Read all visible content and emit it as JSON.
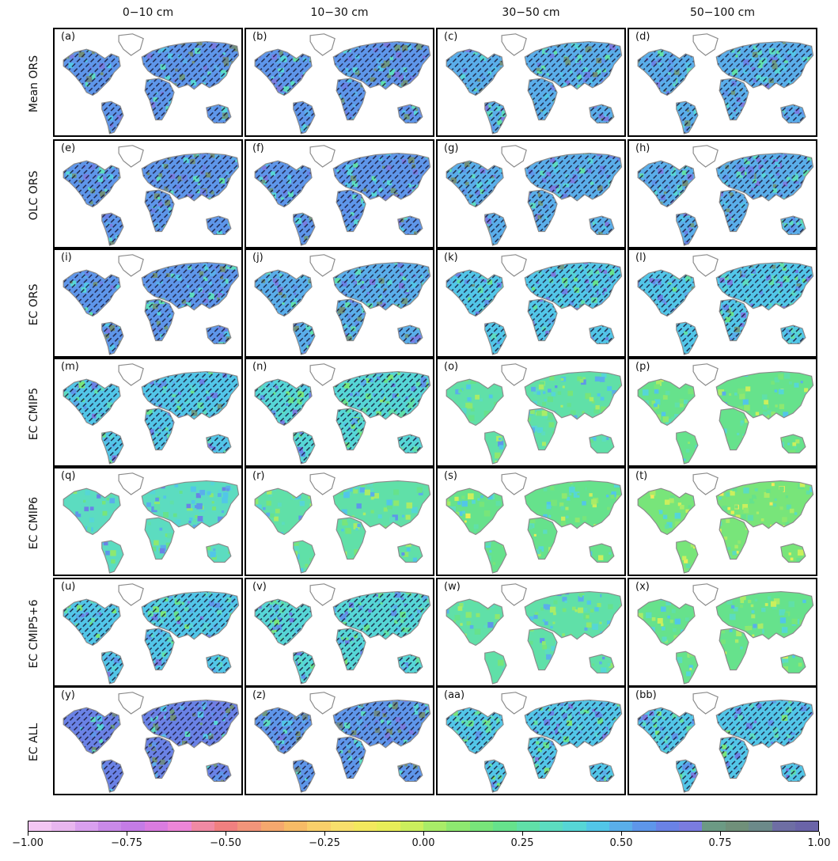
{
  "columns": [
    "0−10 cm",
    "10−30 cm",
    "30−50 cm",
    "50−100 cm"
  ],
  "rows": [
    {
      "label": "Mean ORS",
      "panels": [
        "(a)",
        "(b)",
        "(c)",
        "(d)"
      ],
      "mean_value": [
        0.58,
        0.55,
        0.52,
        0.5
      ]
    },
    {
      "label": "OLC ORS",
      "panels": [
        "(e)",
        "(f)",
        "(g)",
        "(h)"
      ],
      "mean_value": [
        0.56,
        0.54,
        0.52,
        0.5
      ]
    },
    {
      "label": "EC ORS",
      "panels": [
        "(i)",
        "(j)",
        "(k)",
        "(l)"
      ],
      "mean_value": [
        0.55,
        0.52,
        0.46,
        0.46
      ]
    },
    {
      "label": "EC CMIP5",
      "panels": [
        "(m)",
        "(n)",
        "(o)",
        "(p)"
      ],
      "mean_value": [
        0.45,
        0.38,
        0.28,
        0.22
      ]
    },
    {
      "label": "EC CMIP6",
      "panels": [
        "(q)",
        "(r)",
        "(s)",
        "(t)"
      ],
      "mean_value": [
        0.35,
        0.28,
        0.2,
        0.12
      ]
    },
    {
      "label": "EC CMIP5+6",
      "panels": [
        "(u)",
        "(v)",
        "(w)",
        "(x)"
      ],
      "mean_value": [
        0.42,
        0.38,
        0.28,
        0.22
      ]
    },
    {
      "label": "EC ALL",
      "panels": [
        "(y)",
        "(z)",
        "(aa)",
        "(bb)"
      ],
      "mean_value": [
        0.6,
        0.58,
        0.42,
        0.42
      ]
    }
  ],
  "colorbar": {
    "range": [
      -1.0,
      1.0
    ],
    "tick_labels": [
      "−1.00",
      "−0.75",
      "−0.50",
      "−0.25",
      "0.00",
      "0.25",
      "0.50",
      "0.75",
      "1.00"
    ],
    "colors": [
      "#f3c6f3",
      "#e8b6ef",
      "#d9a0ef",
      "#c98ae8",
      "#c47ce6",
      "#da7ce0",
      "#ec86d8",
      "#f08aa4",
      "#f08080",
      "#f2957a",
      "#f5a86e",
      "#f7bb66",
      "#f9cf6a",
      "#f8df6c",
      "#f3e85e",
      "#e8ee58",
      "#cbef5d",
      "#a9ec68",
      "#8ee870",
      "#78e57a",
      "#66e28c",
      "#60e0a8",
      "#5cdcc0",
      "#56d6d6",
      "#52c6e8",
      "#5aaeea",
      "#5e96ea",
      "#6a82e6",
      "#7a7ce0",
      "#6c9a84",
      "#70907a",
      "#6c8a8a",
      "#6e6ea4",
      "#6a64a8"
    ]
  }
}
